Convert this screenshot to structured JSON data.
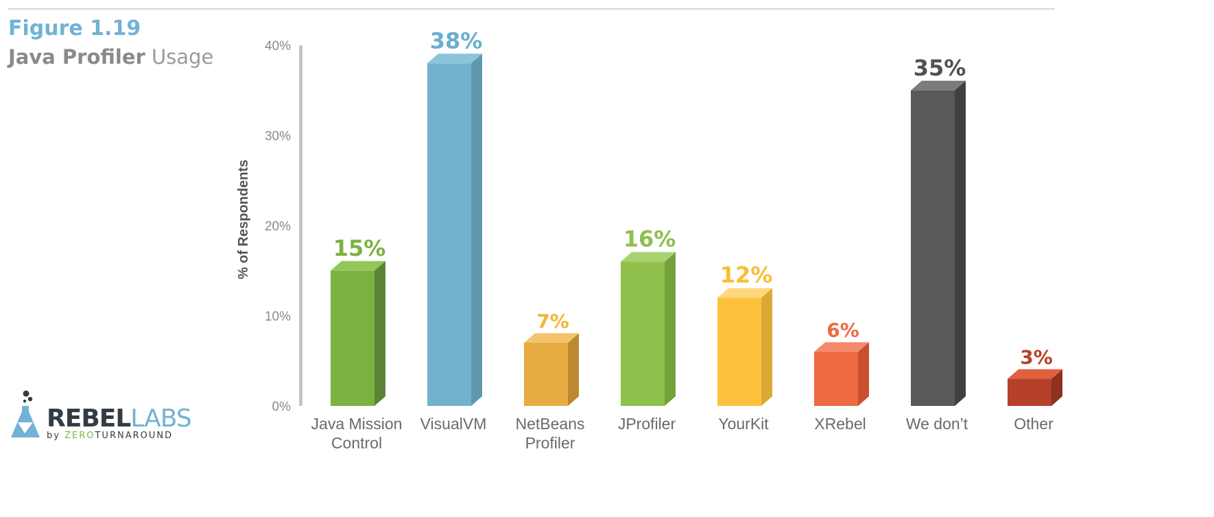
{
  "header": {
    "figure_label": "Figure 1.19",
    "title_bold": "Java Profiler",
    "title_rest": "Usage"
  },
  "logo": {
    "rebel": "REBEL",
    "labs": "LABS",
    "by": "by",
    "zero": "ZERO",
    "turnaround": "TURNAROUND"
  },
  "chart_data": {
    "type": "bar",
    "title": "Java Profiler Usage",
    "ylabel": "% of Respondents",
    "xlabel": "",
    "ylim": [
      0,
      40
    ],
    "yticks": [
      0,
      10,
      20,
      30,
      40
    ],
    "ytick_labels": [
      "0%",
      "10%",
      "20%",
      "30%",
      "40%"
    ],
    "categories": [
      [
        "Java Mission",
        "Control"
      ],
      [
        "VisualVM"
      ],
      [
        "NetBeans",
        "Profiler"
      ],
      [
        "JProfiler"
      ],
      [
        "YourKit"
      ],
      [
        "XRebel"
      ],
      [
        "We don’t"
      ],
      [
        "Other"
      ]
    ],
    "values": [
      15,
      38,
      7,
      16,
      12,
      6,
      35,
      3
    ],
    "value_labels": [
      "15%",
      "38%",
      "7%",
      "16%",
      "12%",
      "6%",
      "35%",
      "3%"
    ],
    "colors": [
      {
        "front": "#7db142",
        "side": "#5b8434",
        "top": "#93c55a",
        "label": "#7db142"
      },
      {
        "front": "#74b1ce",
        "side": "#5f97b0",
        "top": "#8dc3dc",
        "label": "#6aaed0"
      },
      {
        "front": "#e7ab44",
        "side": "#bb8a30",
        "top": "#f5c36b",
        "label": "#f1b73b"
      },
      {
        "front": "#8fc14c",
        "side": "#74a13b",
        "top": "#a8d26f",
        "label": "#8cc04a"
      },
      {
        "front": "#fec13e",
        "side": "#dba933",
        "top": "#ffd77c",
        "label": "#fbbe33"
      },
      {
        "front": "#ed6a43",
        "side": "#c9502f",
        "top": "#f48a6b",
        "label": "#ee6a44"
      },
      {
        "front": "#58595b",
        "side": "#3f4042",
        "top": "#7a7b7d",
        "label": "#505153"
      },
      {
        "front": "#b5412a",
        "side": "#8e311f",
        "top": "#e0603f",
        "label": "#b54129"
      }
    ],
    "grid": false,
    "legend": "none"
  }
}
